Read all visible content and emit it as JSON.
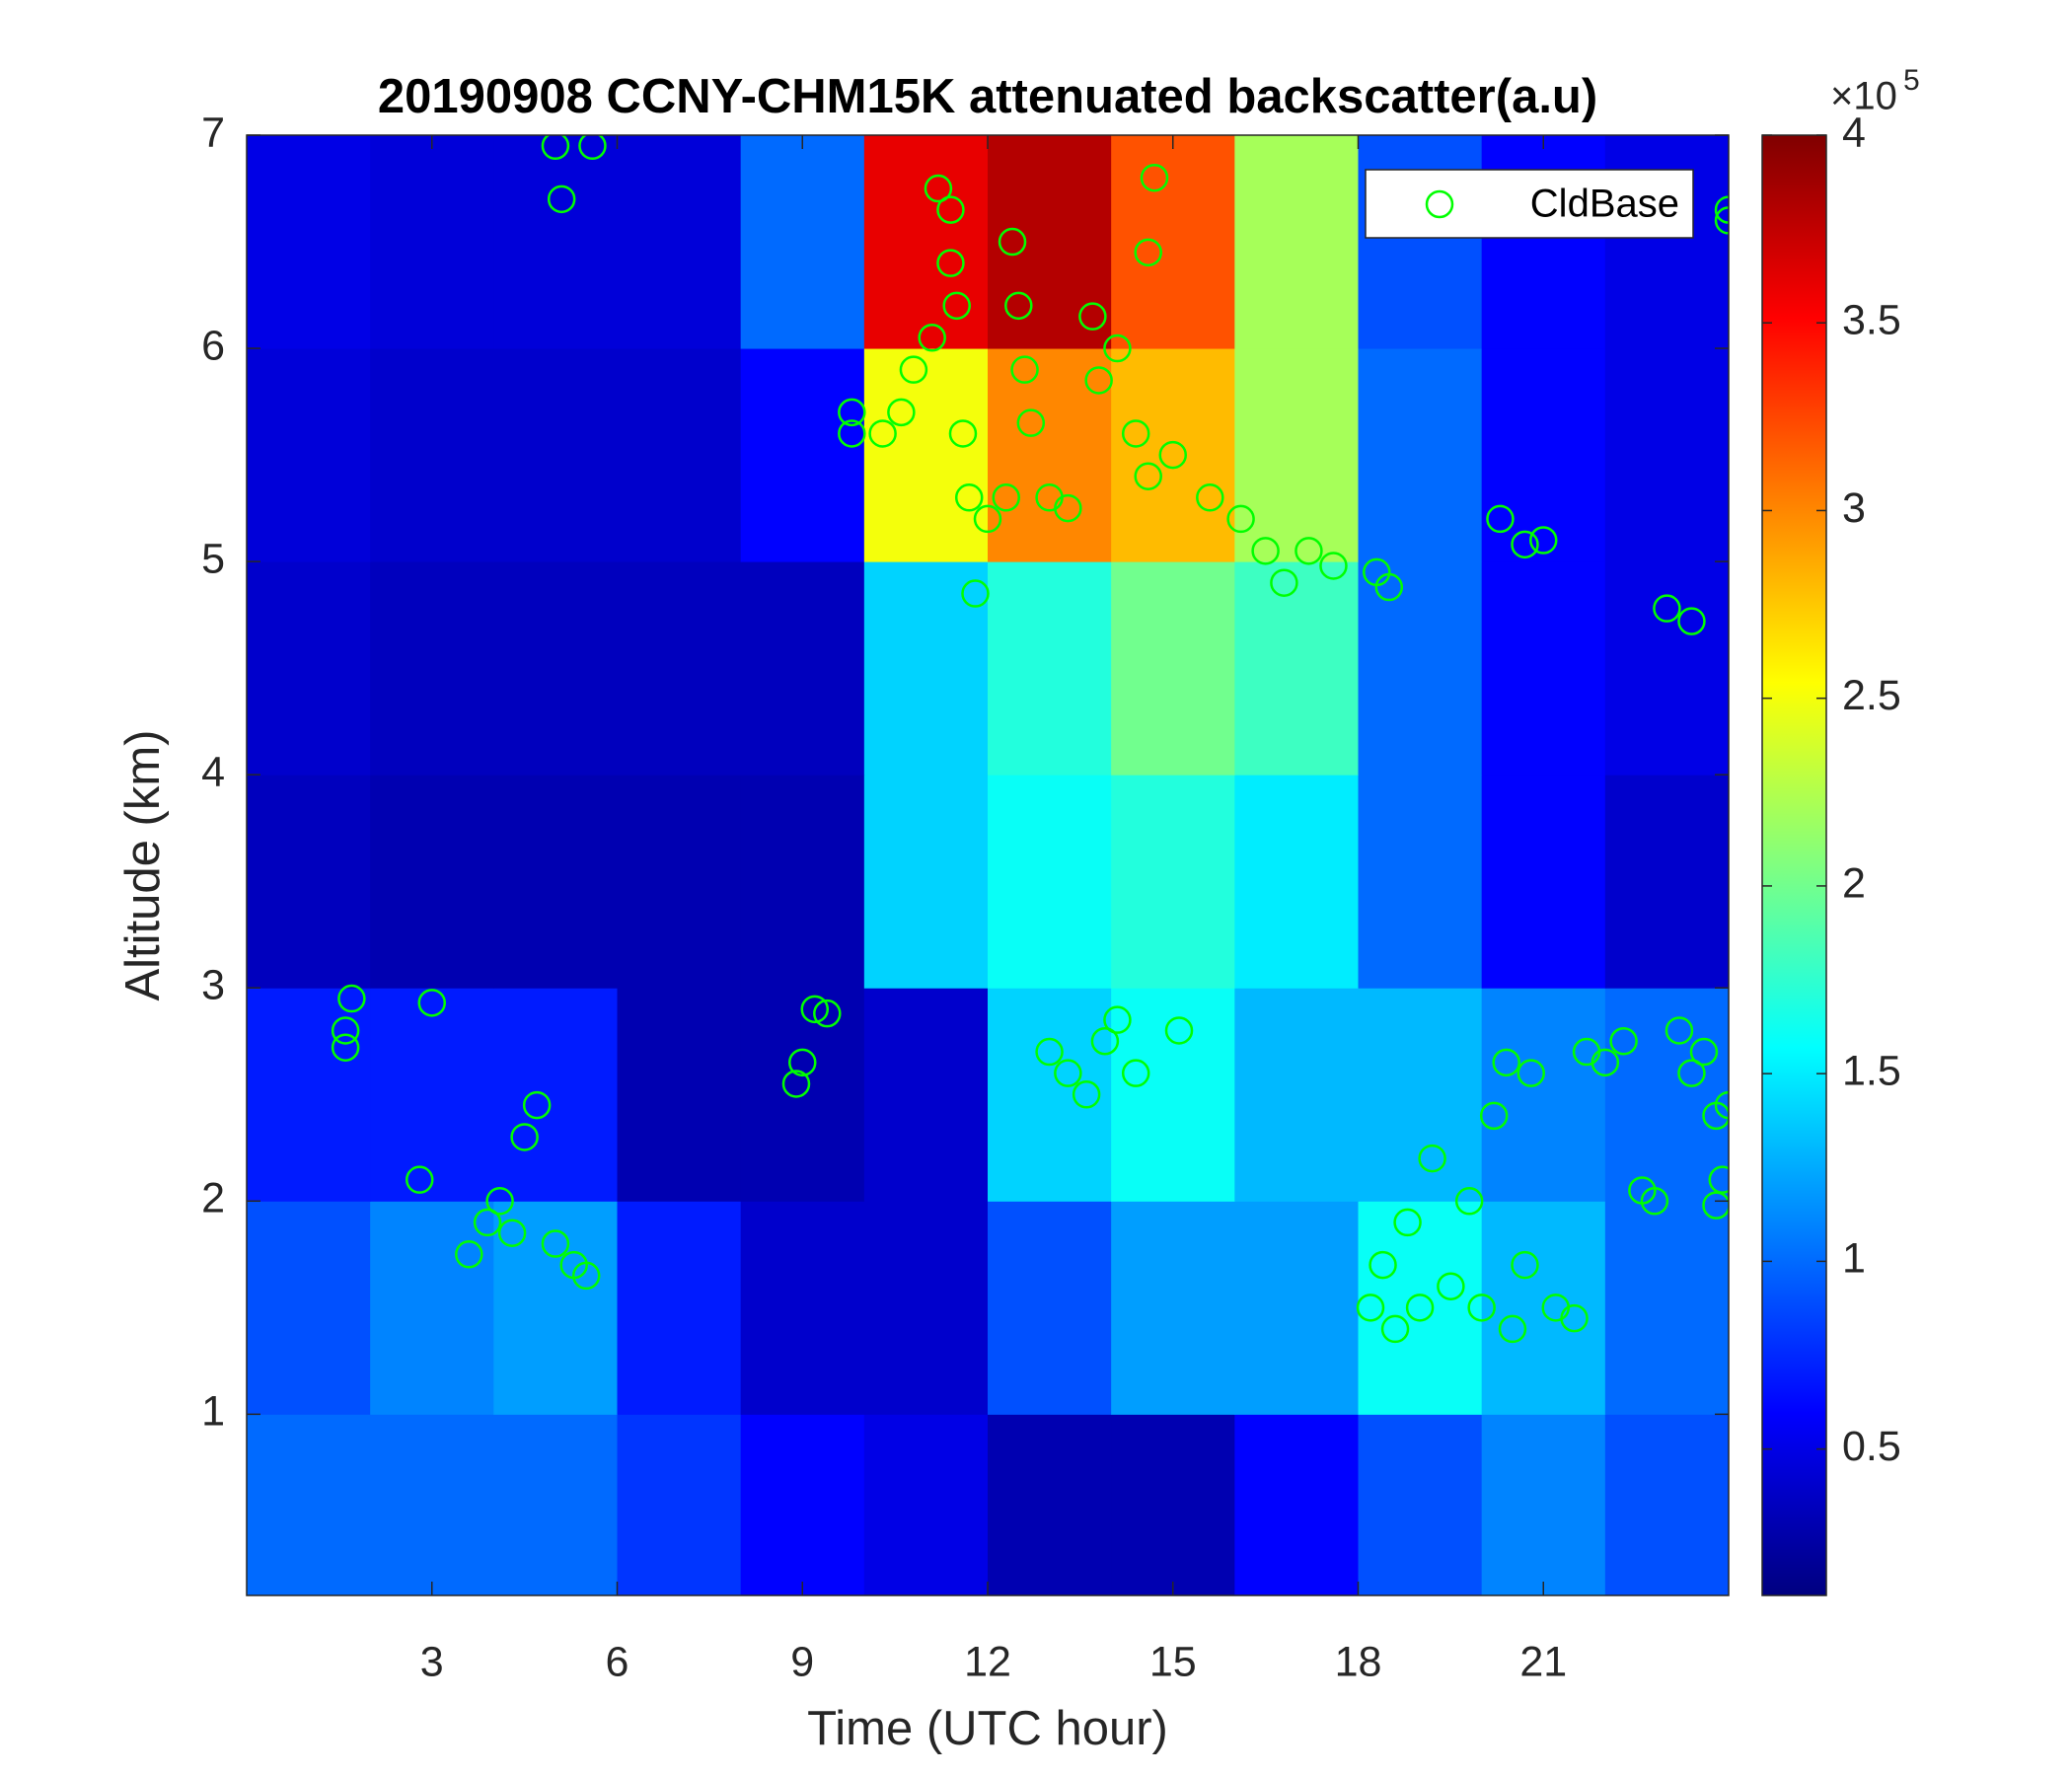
{
  "chart_data": {
    "type": "heatmap",
    "title": "20190908 CCNY-CHM15K attenuated backscatter(a.u)",
    "x_label": "Time (UTC hour)",
    "y_label": "Altitude (km)",
    "xlim": [
      0,
      24
    ],
    "xticks": [
      3,
      6,
      9,
      12,
      15,
      18,
      21
    ],
    "ylim": [
      0.15,
      7
    ],
    "yticks": [
      1,
      2,
      3,
      4,
      5,
      6,
      7
    ],
    "colormap": "jet",
    "clim": [
      0.11,
      4
    ],
    "cticks": [
      0.5,
      1,
      1.5,
      2,
      2.5,
      3,
      3.5,
      4
    ],
    "colorbar_base": "×10",
    "colorbar_exponent": "5",
    "x_edges": [
      0,
      2,
      4,
      6,
      8,
      10,
      12,
      14,
      16,
      18,
      20,
      22,
      24
    ],
    "y_edges": [
      0.15,
      1,
      2,
      3,
      4,
      5,
      6,
      7
    ],
    "z": [
      [
        1.0,
        1.0,
        1.0,
        0.8,
        0.6,
        0.5,
        0.3,
        0.3,
        0.6,
        0.9,
        1.1,
        0.9
      ],
      [
        0.9,
        1.1,
        1.2,
        0.7,
        0.4,
        0.4,
        0.9,
        1.2,
        1.2,
        1.6,
        1.3,
        1.0
      ],
      [
        0.7,
        0.7,
        0.7,
        0.3,
        0.3,
        0.4,
        1.4,
        1.6,
        1.3,
        1.3,
        1.1,
        1.0
      ],
      [
        0.35,
        0.3,
        0.3,
        0.3,
        0.3,
        1.4,
        1.6,
        1.7,
        1.5,
        1.0,
        0.6,
        0.4
      ],
      [
        0.4,
        0.35,
        0.35,
        0.35,
        0.35,
        1.4,
        1.7,
        2.0,
        1.8,
        1.0,
        0.6,
        0.5
      ],
      [
        0.45,
        0.4,
        0.4,
        0.4,
        0.6,
        2.5,
        3.0,
        2.8,
        2.2,
        1.0,
        0.6,
        0.5
      ],
      [
        0.5,
        0.45,
        0.45,
        0.45,
        1.0,
        3.6,
        3.8,
        3.2,
        2.2,
        0.9,
        0.6,
        0.5
      ]
    ],
    "series": [
      {
        "name": "CldBase",
        "color": "#00ff00",
        "x": [
          1.6,
          1.7,
          1.6,
          2.8,
          3.0,
          3.6,
          3.9,
          4.1,
          4.3,
          4.5,
          4.7,
          5.0,
          5.3,
          5.5,
          5.0,
          5.1,
          5.6,
          8.9,
          9.0,
          9.2,
          9.4,
          9.8,
          9.8,
          10.3,
          10.6,
          10.8,
          11.1,
          11.2,
          11.4,
          11.4,
          11.5,
          11.6,
          11.7,
          11.8,
          12.0,
          12.3,
          12.4,
          12.5,
          12.6,
          12.7,
          13.0,
          13.3,
          13.0,
          13.3,
          13.6,
          13.9,
          14.1,
          14.4,
          13.7,
          13.8,
          14.1,
          14.4,
          14.6,
          14.6,
          14.7,
          15.1,
          15.0,
          15.6,
          16.1,
          16.5,
          16.8,
          17.2,
          17.6,
          18.2,
          18.4,
          18.6,
          18.8,
          19.0,
          19.2,
          19.5,
          19.8,
          20.0,
          20.2,
          20.4,
          20.5,
          20.7,
          20.8,
          21.2,
          21.5,
          20.3,
          20.7,
          21.0,
          18.3,
          18.5,
          21.7,
          22.0,
          22.3,
          22.6,
          22.8,
          23.0,
          23.4,
          23.2,
          23.4,
          23.6,
          23.8,
          23.9,
          23.8,
          24.0,
          24.0,
          24.0
        ],
        "values": [
          2.8,
          2.95,
          2.72,
          2.1,
          2.93,
          1.75,
          1.9,
          2.0,
          1.85,
          2.3,
          2.45,
          1.8,
          1.7,
          1.65,
          6.95,
          6.7,
          6.95,
          2.55,
          2.65,
          2.9,
          2.88,
          5.7,
          5.6,
          5.6,
          5.7,
          5.9,
          6.05,
          6.75,
          6.65,
          6.4,
          6.2,
          5.6,
          5.3,
          4.85,
          5.2,
          5.3,
          6.5,
          6.2,
          5.9,
          5.65,
          5.3,
          5.25,
          2.7,
          2.6,
          2.5,
          2.75,
          2.85,
          2.6,
          6.15,
          5.85,
          6.0,
          5.6,
          5.4,
          6.45,
          6.8,
          2.8,
          5.5,
          5.3,
          5.2,
          5.05,
          4.9,
          5.05,
          4.98,
          1.5,
          1.7,
          1.4,
          1.9,
          1.5,
          2.2,
          1.6,
          2.0,
          1.5,
          2.4,
          2.65,
          1.4,
          1.7,
          2.6,
          1.5,
          1.45,
          5.2,
          5.08,
          5.1,
          4.95,
          4.88,
          2.7,
          2.65,
          2.75,
          2.05,
          2.0,
          4.78,
          4.72,
          2.8,
          2.6,
          2.7,
          2.4,
          2.1,
          1.98,
          2.45,
          6.6,
          6.65
        ]
      }
    ],
    "legend": "northeast"
  }
}
